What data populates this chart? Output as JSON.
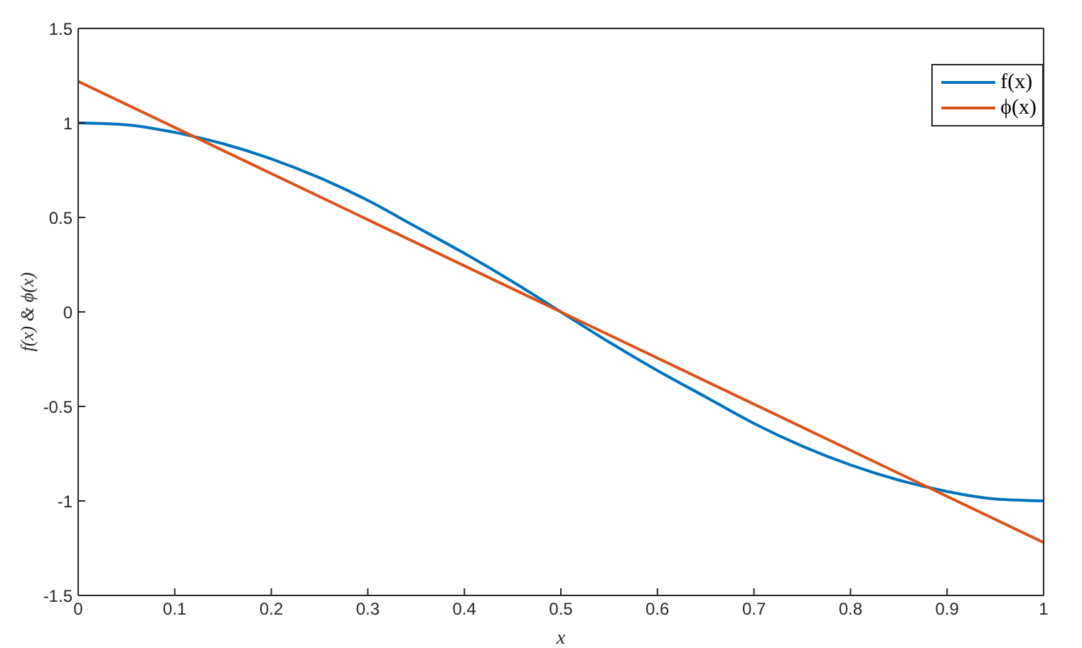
{
  "chart_data": {
    "type": "line",
    "xlabel": "x",
    "ylabel": "f(x) & ϕ(x)",
    "series": [
      {
        "name": "f(x)",
        "color": "#0072bd",
        "x": [
          0,
          0.05,
          0.1,
          0.15,
          0.2,
          0.25,
          0.3,
          0.35,
          0.4,
          0.45,
          0.5,
          0.55,
          0.6,
          0.65,
          0.7,
          0.75,
          0.8,
          0.85,
          0.9,
          0.95,
          1
        ],
        "values": [
          1,
          0.99,
          0.95,
          0.89,
          0.81,
          0.71,
          0.59,
          0.45,
          0.31,
          0.16,
          0,
          -0.16,
          -0.31,
          -0.45,
          -0.59,
          -0.71,
          -0.81,
          -0.89,
          -0.95,
          -0.99,
          -1
        ]
      },
      {
        "name": "ϕ(x)",
        "color": "#d95319",
        "x": [
          0,
          1
        ],
        "values": [
          1.22,
          -1.22
        ]
      }
    ],
    "xlim": [
      0,
      1
    ],
    "xticks": [
      0,
      0.1,
      0.2,
      0.3,
      0.4,
      0.5,
      0.6,
      0.7,
      0.8,
      0.9,
      1
    ],
    "ylim": [
      -1.5,
      1.5
    ],
    "yticks": [
      -1.5,
      -1,
      -0.5,
      0,
      0.5,
      1,
      1.5
    ],
    "legend": "top right"
  }
}
